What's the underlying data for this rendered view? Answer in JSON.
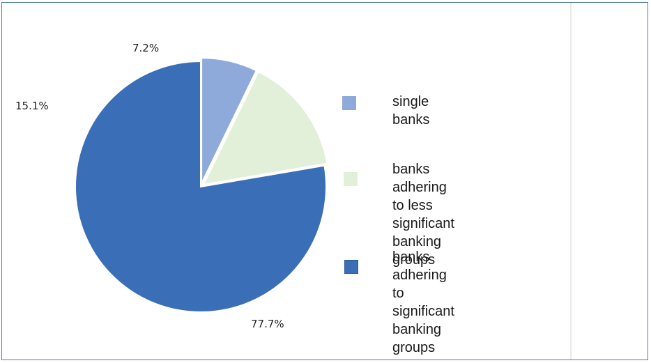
{
  "chart_data": {
    "type": "pie",
    "title": "",
    "slices": [
      {
        "label": "single banks",
        "value": 7.2,
        "display": "7.2%",
        "color": "#8eaadb"
      },
      {
        "label": "banks adhering to less significant banking groups",
        "value": 15.1,
        "display": "15.1%",
        "color": "#e3f0d9"
      },
      {
        "label": "banks adhering to significant banking groups",
        "value": 77.7,
        "display": "77.7%",
        "color": "#3a6fb8"
      }
    ],
    "legend_lines": [
      [
        "single banks"
      ],
      [
        "banks adhering to less significant",
        "banking groups"
      ],
      [
        "banks adhering to significant",
        "banking groups"
      ]
    ],
    "legend_position": "right",
    "start_angle": "top, clockwise",
    "explode_small_slices": true
  }
}
